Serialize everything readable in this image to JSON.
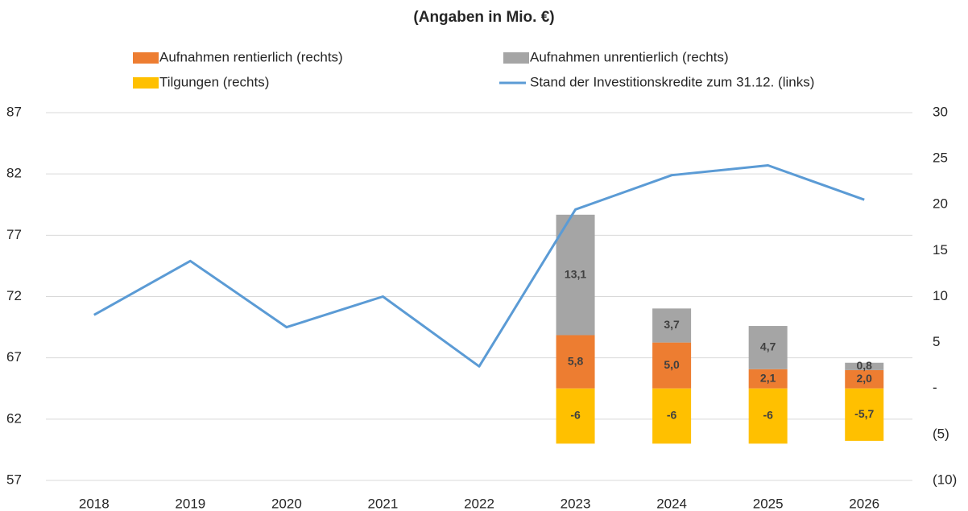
{
  "chart_data": {
    "type": "bar-line",
    "title": "(Angaben in Mio. €)",
    "categories": [
      "2018",
      "2019",
      "2020",
      "2021",
      "2022",
      "2023",
      "2024",
      "2025",
      "2026"
    ],
    "series": [
      {
        "name": "Aufnahmen rentierlich (rechts)",
        "color": "#ed7d31",
        "axis": "y2",
        "kind": "bar",
        "values": [
          null,
          null,
          null,
          null,
          null,
          5.8,
          5.0,
          2.1,
          2.0
        ],
        "value_labels": [
          null,
          null,
          null,
          null,
          null,
          "5,8",
          "5,0",
          "2,1",
          "2,0"
        ]
      },
      {
        "name": "Aufnahmen unrentierlich (rechts)",
        "color": "#a5a5a5",
        "axis": "y2",
        "kind": "bar",
        "values": [
          null,
          null,
          null,
          null,
          null,
          13.1,
          3.7,
          4.7,
          0.8
        ],
        "value_labels": [
          null,
          null,
          null,
          null,
          null,
          "13,1",
          "3,7",
          "4,7",
          "0,8"
        ]
      },
      {
        "name": "Tilgungen (rechts)",
        "color": "#ffc000",
        "axis": "y2",
        "kind": "bar",
        "values": [
          null,
          null,
          null,
          null,
          null,
          -6,
          -6,
          -6,
          -5.7
        ],
        "value_labels": [
          null,
          null,
          null,
          null,
          null,
          "-6",
          "-6",
          "-6",
          "-5,7"
        ]
      },
      {
        "name": "Stand der Investitionskredite zum 31.12. (links)",
        "color": "#5b9bd5",
        "kind": "line",
        "values": [
          70.5,
          74.9,
          69.5,
          72.0,
          66.3,
          79.1,
          81.9,
          82.7,
          79.9
        ]
      }
    ],
    "ylim": [
      57,
      87
    ],
    "yticks": [
      57,
      62,
      67,
      72,
      77,
      82,
      87
    ],
    "y2lim": [
      -10,
      30
    ],
    "y2ticks": [
      {
        "value": -10,
        "label": "(10)"
      },
      {
        "value": -5,
        "label": "(5)"
      },
      {
        "value": 0,
        "label": "-"
      },
      5,
      10,
      15,
      20,
      25,
      30
    ],
    "grid": true
  }
}
